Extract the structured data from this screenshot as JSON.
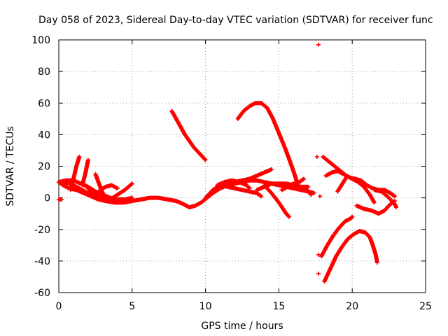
{
  "chart_data": {
    "type": "scatter",
    "title": "Day 058 of 2023, Sidereal Day-to-day VTEC variation (SDTVAR) for receiver func",
    "xlabel": "GPS time / hours",
    "ylabel": "SDTVAR / TECUs",
    "xlim": [
      0,
      25
    ],
    "ylim": [
      -60,
      100
    ],
    "xticks": [
      0,
      5,
      10,
      15,
      20,
      25
    ],
    "yticks": [
      -60,
      -40,
      -20,
      0,
      20,
      40,
      60,
      80,
      100
    ],
    "grid": true,
    "marker": "+",
    "color": "#ff0000",
    "series": [
      {
        "name": "arc-early-dip",
        "points": [
          [
            0.0,
            10
          ],
          [
            0.3,
            8
          ],
          [
            0.7,
            6
          ],
          [
            1.2,
            5
          ],
          [
            1.7,
            3
          ],
          [
            2.2,
            1
          ],
          [
            2.7,
            -1
          ],
          [
            3.2,
            -2
          ],
          [
            3.8,
            -3
          ],
          [
            4.4,
            -3
          ],
          [
            5.0,
            -2
          ],
          [
            5.6,
            -1
          ],
          [
            6.2,
            0
          ],
          [
            6.8,
            0
          ],
          [
            7.4,
            -1
          ],
          [
            8.0,
            -2
          ],
          [
            8.5,
            -4
          ],
          [
            8.9,
            -6
          ],
          [
            9.3,
            -5
          ],
          [
            9.7,
            -3
          ],
          [
            10.1,
            0
          ],
          [
            10.5,
            3
          ],
          [
            11.0,
            6
          ],
          [
            11.5,
            8
          ],
          [
            12.0,
            9
          ],
          [
            12.5,
            10
          ],
          [
            13.0,
            11
          ],
          [
            13.5,
            11
          ],
          [
            14.0,
            10
          ],
          [
            14.5,
            9
          ],
          [
            15.0,
            9
          ],
          [
            15.5,
            9
          ],
          [
            16.0,
            8
          ],
          [
            16.5,
            7
          ],
          [
            17.0,
            7
          ]
        ]
      },
      {
        "name": "arc-early-upper",
        "points": [
          [
            0.0,
            10
          ],
          [
            0.5,
            11
          ],
          [
            1.0,
            11
          ],
          [
            1.5,
            9
          ],
          [
            2.0,
            7
          ],
          [
            2.5,
            4
          ],
          [
            3.0,
            2
          ],
          [
            3.5,
            0
          ],
          [
            4.0,
            -1
          ],
          [
            4.5,
            -1
          ],
          [
            5.0,
            0
          ]
        ]
      },
      {
        "name": "arc-early-b",
        "points": [
          [
            0.3,
            10
          ],
          [
            0.8,
            9
          ],
          [
            1.2,
            7
          ],
          [
            1.6,
            5
          ],
          [
            2.0,
            3
          ],
          [
            2.4,
            1
          ],
          [
            2.8,
            0
          ],
          [
            3.2,
            -1
          ],
          [
            3.7,
            -2
          ],
          [
            4.2,
            -2
          ]
        ]
      },
      {
        "name": "arc-rise-1",
        "points": [
          [
            0.8,
            5
          ],
          [
            1.0,
            12
          ],
          [
            1.2,
            20
          ],
          [
            1.4,
            26
          ]
        ]
      },
      {
        "name": "arc-rise-2",
        "points": [
          [
            1.6,
            8
          ],
          [
            1.8,
            15
          ],
          [
            2.0,
            24
          ]
        ]
      },
      {
        "name": "arc-2-to-3",
        "points": [
          [
            1.8,
            8
          ],
          [
            2.2,
            4
          ],
          [
            2.6,
            1
          ],
          [
            3.0,
            -1
          ],
          [
            3.4,
            -2
          ]
        ]
      },
      {
        "name": "arc-2-b",
        "points": [
          [
            2.5,
            15
          ],
          [
            2.7,
            10
          ],
          [
            2.9,
            5
          ],
          [
            3.1,
            1
          ],
          [
            3.3,
            -2
          ]
        ]
      },
      {
        "name": "arc-4-5",
        "points": [
          [
            3.5,
            -1
          ],
          [
            4.0,
            2
          ],
          [
            4.5,
            5
          ],
          [
            5.0,
            9
          ]
        ]
      },
      {
        "name": "arc-3-4",
        "points": [
          [
            2.8,
            5
          ],
          [
            3.2,
            7
          ],
          [
            3.6,
            8
          ],
          [
            4.0,
            6
          ]
        ]
      },
      {
        "name": "arc-start-short",
        "points": [
          [
            0.0,
            -1
          ],
          [
            0.2,
            -1
          ]
        ]
      },
      {
        "name": "arc-8-10-falling",
        "points": [
          [
            7.7,
            55
          ],
          [
            8.0,
            50
          ],
          [
            8.3,
            45
          ],
          [
            8.6,
            40
          ],
          [
            8.9,
            36
          ],
          [
            9.2,
            32
          ],
          [
            9.5,
            29
          ],
          [
            9.8,
            26
          ],
          [
            10.0,
            24
          ]
        ]
      },
      {
        "name": "arc-10-14-a",
        "points": [
          [
            10.5,
            3
          ],
          [
            11.0,
            7
          ],
          [
            11.5,
            9
          ],
          [
            12.0,
            10
          ],
          [
            12.5,
            11
          ],
          [
            13.0,
            12
          ],
          [
            13.5,
            14
          ],
          [
            14.0,
            16
          ],
          [
            14.5,
            18
          ]
        ]
      },
      {
        "name": "arc-10-14-b",
        "points": [
          [
            10.0,
            0
          ],
          [
            10.5,
            5
          ],
          [
            11.0,
            8
          ],
          [
            11.5,
            7
          ],
          [
            12.0,
            6
          ],
          [
            12.5,
            5
          ],
          [
            13.0,
            4
          ],
          [
            13.5,
            3
          ],
          [
            13.8,
            1
          ]
        ]
      },
      {
        "name": "arc-11-13",
        "points": [
          [
            10.8,
            8
          ],
          [
            11.3,
            10
          ],
          [
            11.8,
            11
          ],
          [
            12.3,
            10
          ],
          [
            12.8,
            8
          ],
          [
            13.0,
            6
          ]
        ]
      },
      {
        "name": "arc-12-hump",
        "points": [
          [
            12.2,
            50
          ],
          [
            12.6,
            55
          ],
          [
            13.0,
            58
          ],
          [
            13.4,
            60
          ],
          [
            13.8,
            60
          ],
          [
            14.2,
            57
          ],
          [
            14.6,
            50
          ],
          [
            15.0,
            41
          ],
          [
            15.4,
            32
          ],
          [
            15.8,
            22
          ],
          [
            16.1,
            14
          ],
          [
            16.3,
            8
          ]
        ]
      },
      {
        "name": "arc-14-16-down",
        "points": [
          [
            14.0,
            8
          ],
          [
            14.5,
            3
          ],
          [
            15.0,
            -3
          ],
          [
            15.5,
            -10
          ],
          [
            15.7,
            -12
          ]
        ]
      },
      {
        "name": "arc-13-17",
        "points": [
          [
            13.5,
            5
          ],
          [
            14.0,
            7
          ],
          [
            14.5,
            9
          ],
          [
            15.0,
            8
          ],
          [
            15.5,
            7
          ],
          [
            16.0,
            6
          ],
          [
            16.5,
            5
          ],
          [
            17.0,
            4
          ],
          [
            17.4,
            3
          ]
        ]
      },
      {
        "name": "arc-15-17-up",
        "points": [
          [
            15.2,
            5
          ],
          [
            15.6,
            7
          ],
          [
            16.0,
            9
          ],
          [
            16.4,
            10
          ],
          [
            16.7,
            12
          ]
        ]
      },
      {
        "name": "arc-17-6-short",
        "points": [
          [
            16.8,
            6
          ],
          [
            17.0,
            4
          ],
          [
            17.2,
            2
          ]
        ]
      },
      {
        "name": "isolated-top",
        "points": [
          [
            17.7,
            97
          ]
        ]
      },
      {
        "name": "isolated-17-26",
        "points": [
          [
            17.6,
            26
          ]
        ]
      },
      {
        "name": "isolated-17-1",
        "points": [
          [
            17.8,
            1
          ]
        ]
      },
      {
        "name": "isolated-17-neg36",
        "points": [
          [
            17.7,
            -36
          ]
        ]
      },
      {
        "name": "isolated-17-neg48",
        "points": [
          [
            17.7,
            -48
          ]
        ]
      },
      {
        "name": "arc-18-21-upper",
        "points": [
          [
            18.0,
            26
          ],
          [
            18.4,
            23
          ],
          [
            18.8,
            20
          ],
          [
            19.2,
            17
          ],
          [
            19.6,
            14
          ],
          [
            20.0,
            12
          ],
          [
            20.4,
            10
          ],
          [
            20.8,
            7
          ],
          [
            21.2,
            2
          ],
          [
            21.5,
            -3
          ]
        ]
      },
      {
        "name": "arc-18-20-lower",
        "points": [
          [
            18.2,
            14
          ],
          [
            18.6,
            16
          ],
          [
            19.0,
            17
          ],
          [
            19.4,
            15
          ],
          [
            19.8,
            13
          ],
          [
            20.2,
            12
          ],
          [
            20.6,
            11
          ],
          [
            21.0,
            8
          ],
          [
            21.4,
            6
          ],
          [
            21.8,
            5
          ],
          [
            22.2,
            5
          ],
          [
            22.6,
            3
          ],
          [
            22.9,
            1
          ]
        ]
      },
      {
        "name": "arc-19-rise",
        "points": [
          [
            19.0,
            4
          ],
          [
            19.2,
            7
          ],
          [
            19.4,
            10
          ],
          [
            19.6,
            13
          ]
        ]
      },
      {
        "name": "arc-19-neg",
        "points": [
          [
            17.9,
            -37
          ],
          [
            18.3,
            -30
          ],
          [
            18.7,
            -24
          ],
          [
            19.1,
            -19
          ],
          [
            19.5,
            -15
          ],
          [
            19.9,
            -13
          ],
          [
            20.0,
            -12
          ]
        ]
      },
      {
        "name": "arc-20-neg-hump",
        "points": [
          [
            18.1,
            -53
          ],
          [
            18.5,
            -45
          ],
          [
            18.9,
            -37
          ],
          [
            19.3,
            -31
          ],
          [
            19.7,
            -26
          ],
          [
            20.1,
            -23
          ],
          [
            20.5,
            -21
          ],
          [
            20.9,
            -22
          ],
          [
            21.2,
            -25
          ],
          [
            21.4,
            -30
          ],
          [
            21.6,
            -36
          ],
          [
            21.7,
            -41
          ]
        ]
      },
      {
        "name": "arc-20-21-small",
        "points": [
          [
            20.3,
            -5
          ],
          [
            20.8,
            -7
          ],
          [
            21.3,
            -8
          ],
          [
            21.8,
            -10
          ],
          [
            22.2,
            -8
          ],
          [
            22.6,
            -4
          ],
          [
            22.9,
            -2
          ]
        ]
      },
      {
        "name": "arc-22-23",
        "points": [
          [
            21.5,
            5
          ],
          [
            22.0,
            4
          ],
          [
            22.5,
            0
          ],
          [
            22.9,
            -4
          ],
          [
            23.0,
            -6
          ]
        ]
      }
    ]
  }
}
